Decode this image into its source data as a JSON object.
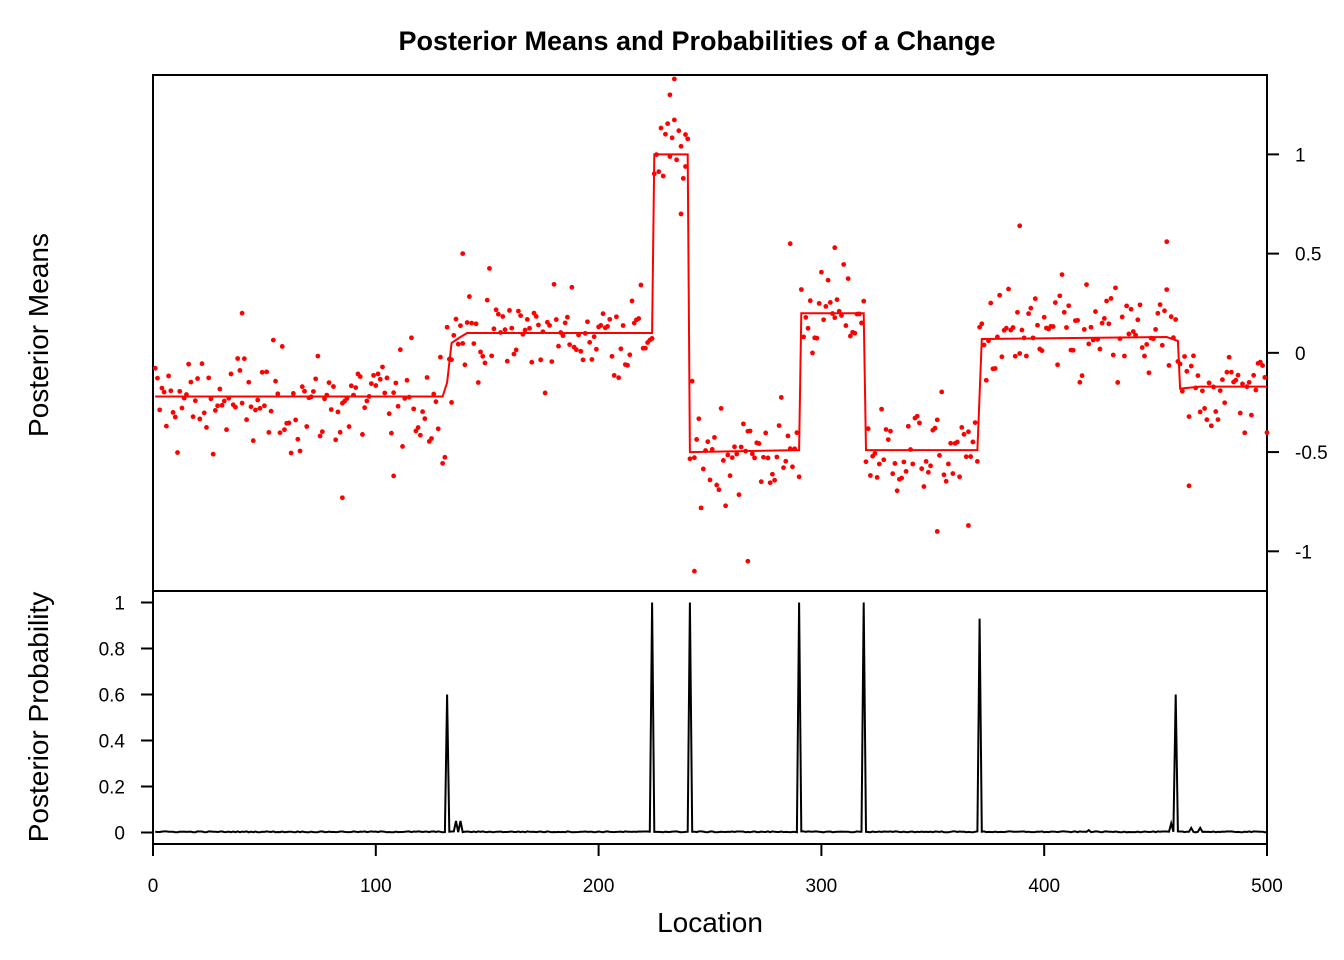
{
  "chart_data": {
    "type": "line",
    "title": "Posterior Means and Probabilities of a Change",
    "xlabel": "Location",
    "xlim": [
      0,
      500
    ],
    "x_ticks": [
      0,
      100,
      200,
      300,
      400,
      500
    ],
    "colors": {
      "means": "#ff0000",
      "probability": "#000000",
      "axes": "#000000"
    },
    "panels": [
      {
        "name": "means",
        "ylabel": "Posterior Means",
        "ylim": [
          -1.2,
          1.4
        ],
        "y_ticks": [
          -1,
          -0.5,
          0,
          0.5,
          1
        ],
        "y_tick_labels": [
          "-1",
          "-0.5",
          "0",
          "0.5",
          "1"
        ],
        "y_axis_side": "right",
        "series": [
          {
            "type": "step-line",
            "points": [
              [
                1,
                -0.22
              ],
              [
                130,
                -0.22
              ],
              [
                132,
                -0.15
              ],
              [
                134,
                0.05
              ],
              [
                138,
                0.08
              ],
              [
                141,
                0.1
              ],
              [
                224,
                0.1
              ],
              [
                225,
                1.0
              ],
              [
                240,
                1.0
              ],
              [
                241,
                -0.5
              ],
              [
                290,
                -0.49
              ],
              [
                291,
                0.2
              ],
              [
                319,
                0.2
              ],
              [
                320,
                -0.49
              ],
              [
                370,
                -0.49
              ],
              [
                372,
                0.07
              ],
              [
                455,
                0.08
              ],
              [
                460,
                0.06
              ],
              [
                461,
                -0.18
              ],
              [
                470,
                -0.17
              ],
              [
                500,
                -0.17
              ]
            ]
          },
          {
            "type": "scatter",
            "segments": [
              {
                "from": 1,
                "to": 131,
                "mean": -0.25,
                "spread": 0.22
              },
              {
                "from": 132,
                "to": 224,
                "mean": 0.1,
                "spread": 0.2
              },
              {
                "from": 225,
                "to": 240,
                "mean": 1.0,
                "spread": 0.18
              },
              {
                "from": 241,
                "to": 290,
                "mean": -0.5,
                "spread": 0.22
              },
              {
                "from": 291,
                "to": 319,
                "mean": 0.2,
                "spread": 0.18
              },
              {
                "from": 320,
                "to": 370,
                "mean": -0.5,
                "spread": 0.2
              },
              {
                "from": 371,
                "to": 459,
                "mean": 0.08,
                "spread": 0.22
              },
              {
                "from": 460,
                "to": 500,
                "mean": -0.18,
                "spread": 0.2
              }
            ],
            "outliers": [
              [
                134,
                -0.25
              ],
              [
                139,
                0.5
              ],
              [
                232,
                1.3
              ],
              [
                234,
                1.38
              ],
              [
                237,
                0.7
              ],
              [
                239,
                1.1
              ],
              [
                243,
                -1.1
              ],
              [
                267,
                -1.05
              ],
              [
                286,
                0.55
              ],
              [
                306,
                0.53
              ],
              [
                352,
                -0.9
              ],
              [
                366,
                -0.87
              ],
              [
                389,
                0.64
              ],
              [
                455,
                0.56
              ],
              [
                465,
                -0.67
              ],
              [
                40,
                0.2
              ],
              [
                85,
                -0.73
              ],
              [
                108,
                -0.62
              ]
            ]
          }
        ]
      },
      {
        "name": "probability",
        "ylabel": "Posterior Probability",
        "ylim": [
          -0.05,
          1.05
        ],
        "y_ticks": [
          0,
          0.2,
          0.4,
          0.6,
          0.8,
          1
        ],
        "y_tick_labels": [
          "0",
          "0.2",
          "0.4",
          "0.6",
          "0.8",
          "1"
        ],
        "y_axis_side": "left",
        "baseline": 0.003,
        "peaks": [
          {
            "x": 132,
            "y": 0.6
          },
          {
            "x": 136,
            "y": 0.05
          },
          {
            "x": 138,
            "y": 0.05
          },
          {
            "x": 224,
            "y": 1.0
          },
          {
            "x": 241,
            "y": 1.0
          },
          {
            "x": 290,
            "y": 1.0
          },
          {
            "x": 319,
            "y": 1.0
          },
          {
            "x": 371,
            "y": 0.93
          },
          {
            "x": 420,
            "y": 0.01
          },
          {
            "x": 457,
            "y": 0.04
          },
          {
            "x": 459,
            "y": 0.6
          },
          {
            "x": 466,
            "y": 0.02
          },
          {
            "x": 470,
            "y": 0.02
          }
        ]
      }
    ]
  }
}
